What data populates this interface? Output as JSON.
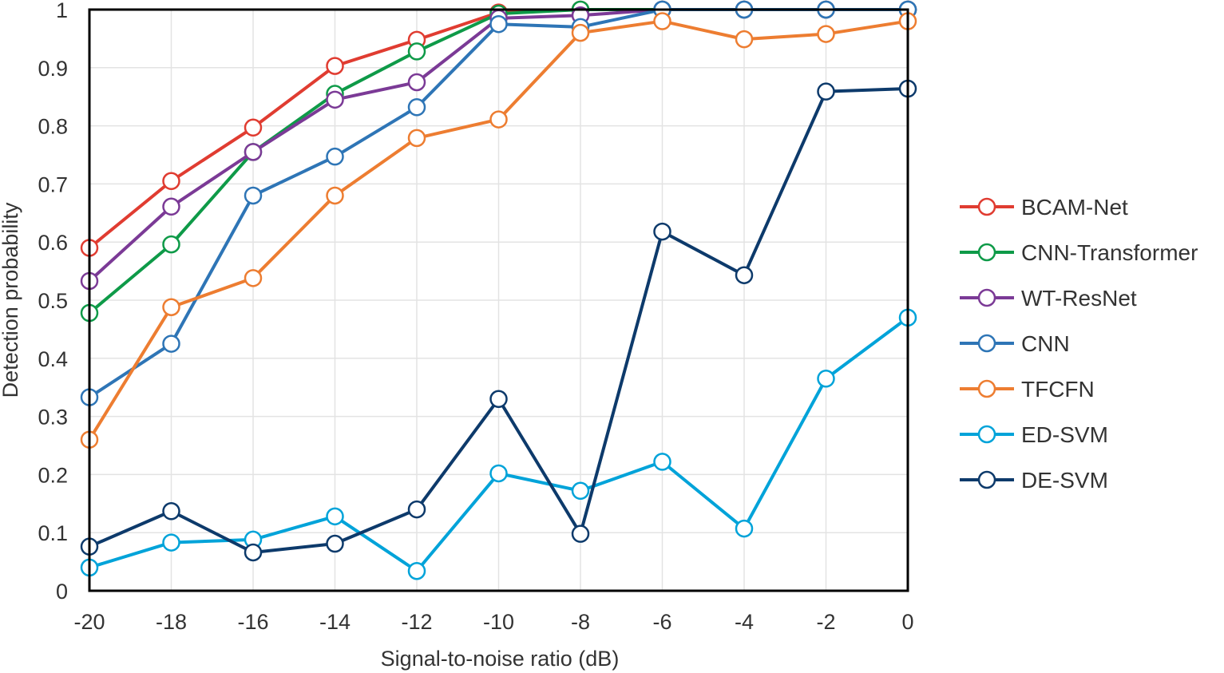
{
  "chart_data": {
    "type": "line",
    "title": "",
    "xlabel": "Signal-to-noise ratio (dB)",
    "ylabel": "Detection probability",
    "x": [
      -20,
      -18,
      -16,
      -14,
      -12,
      -10,
      -8,
      -6,
      -4,
      -2,
      0
    ],
    "xlim": [
      -20,
      0
    ],
    "ylim": [
      0,
      1
    ],
    "x_ticks": [
      "-20",
      "-18",
      "-16",
      "-14",
      "-12",
      "-10",
      "-8",
      "-6",
      "-4",
      "-2",
      "0"
    ],
    "y_ticks": [
      "0",
      "0.1",
      "0.2",
      "0.3",
      "0.4",
      "0.5",
      "0.6",
      "0.7",
      "0.8",
      "0.9",
      "1"
    ],
    "grid": true,
    "legend_position": "right",
    "series": [
      {
        "name": "BCAM-Net",
        "color": "#e03c31",
        "values": [
          0.59,
          0.705,
          0.797,
          0.903,
          0.948,
          0.995,
          1.0,
          1.0,
          1.0,
          1.0,
          1.0
        ]
      },
      {
        "name": "CNN-Transformer",
        "color": "#0e9a48",
        "values": [
          0.478,
          0.596,
          0.755,
          0.855,
          0.928,
          0.993,
          1.0,
          1.0,
          1.0,
          1.0,
          1.0
        ]
      },
      {
        "name": "WT-ResNet",
        "color": "#7b3a96",
        "values": [
          0.533,
          0.661,
          0.755,
          0.845,
          0.875,
          0.985,
          0.99,
          1.0,
          1.0,
          1.0,
          1.0
        ]
      },
      {
        "name": "CNN",
        "color": "#2e75b6",
        "values": [
          0.333,
          0.425,
          0.68,
          0.747,
          0.832,
          0.975,
          0.97,
          1.0,
          1.0,
          1.0,
          1.0
        ]
      },
      {
        "name": "TFCFN",
        "color": "#ed7d31",
        "values": [
          0.26,
          0.488,
          0.538,
          0.68,
          0.779,
          0.811,
          0.96,
          0.98,
          0.949,
          0.958,
          0.98
        ]
      },
      {
        "name": "ED-SVM",
        "color": "#00a3d9",
        "values": [
          0.04,
          0.083,
          0.088,
          0.128,
          0.034,
          0.202,
          0.172,
          0.222,
          0.107,
          0.365,
          0.47
        ]
      },
      {
        "name": "DE-SVM",
        "color": "#0d3a6b",
        "values": [
          0.076,
          0.137,
          0.066,
          0.081,
          0.14,
          0.33,
          0.098,
          0.618,
          0.543,
          0.859,
          0.864
        ]
      }
    ]
  }
}
